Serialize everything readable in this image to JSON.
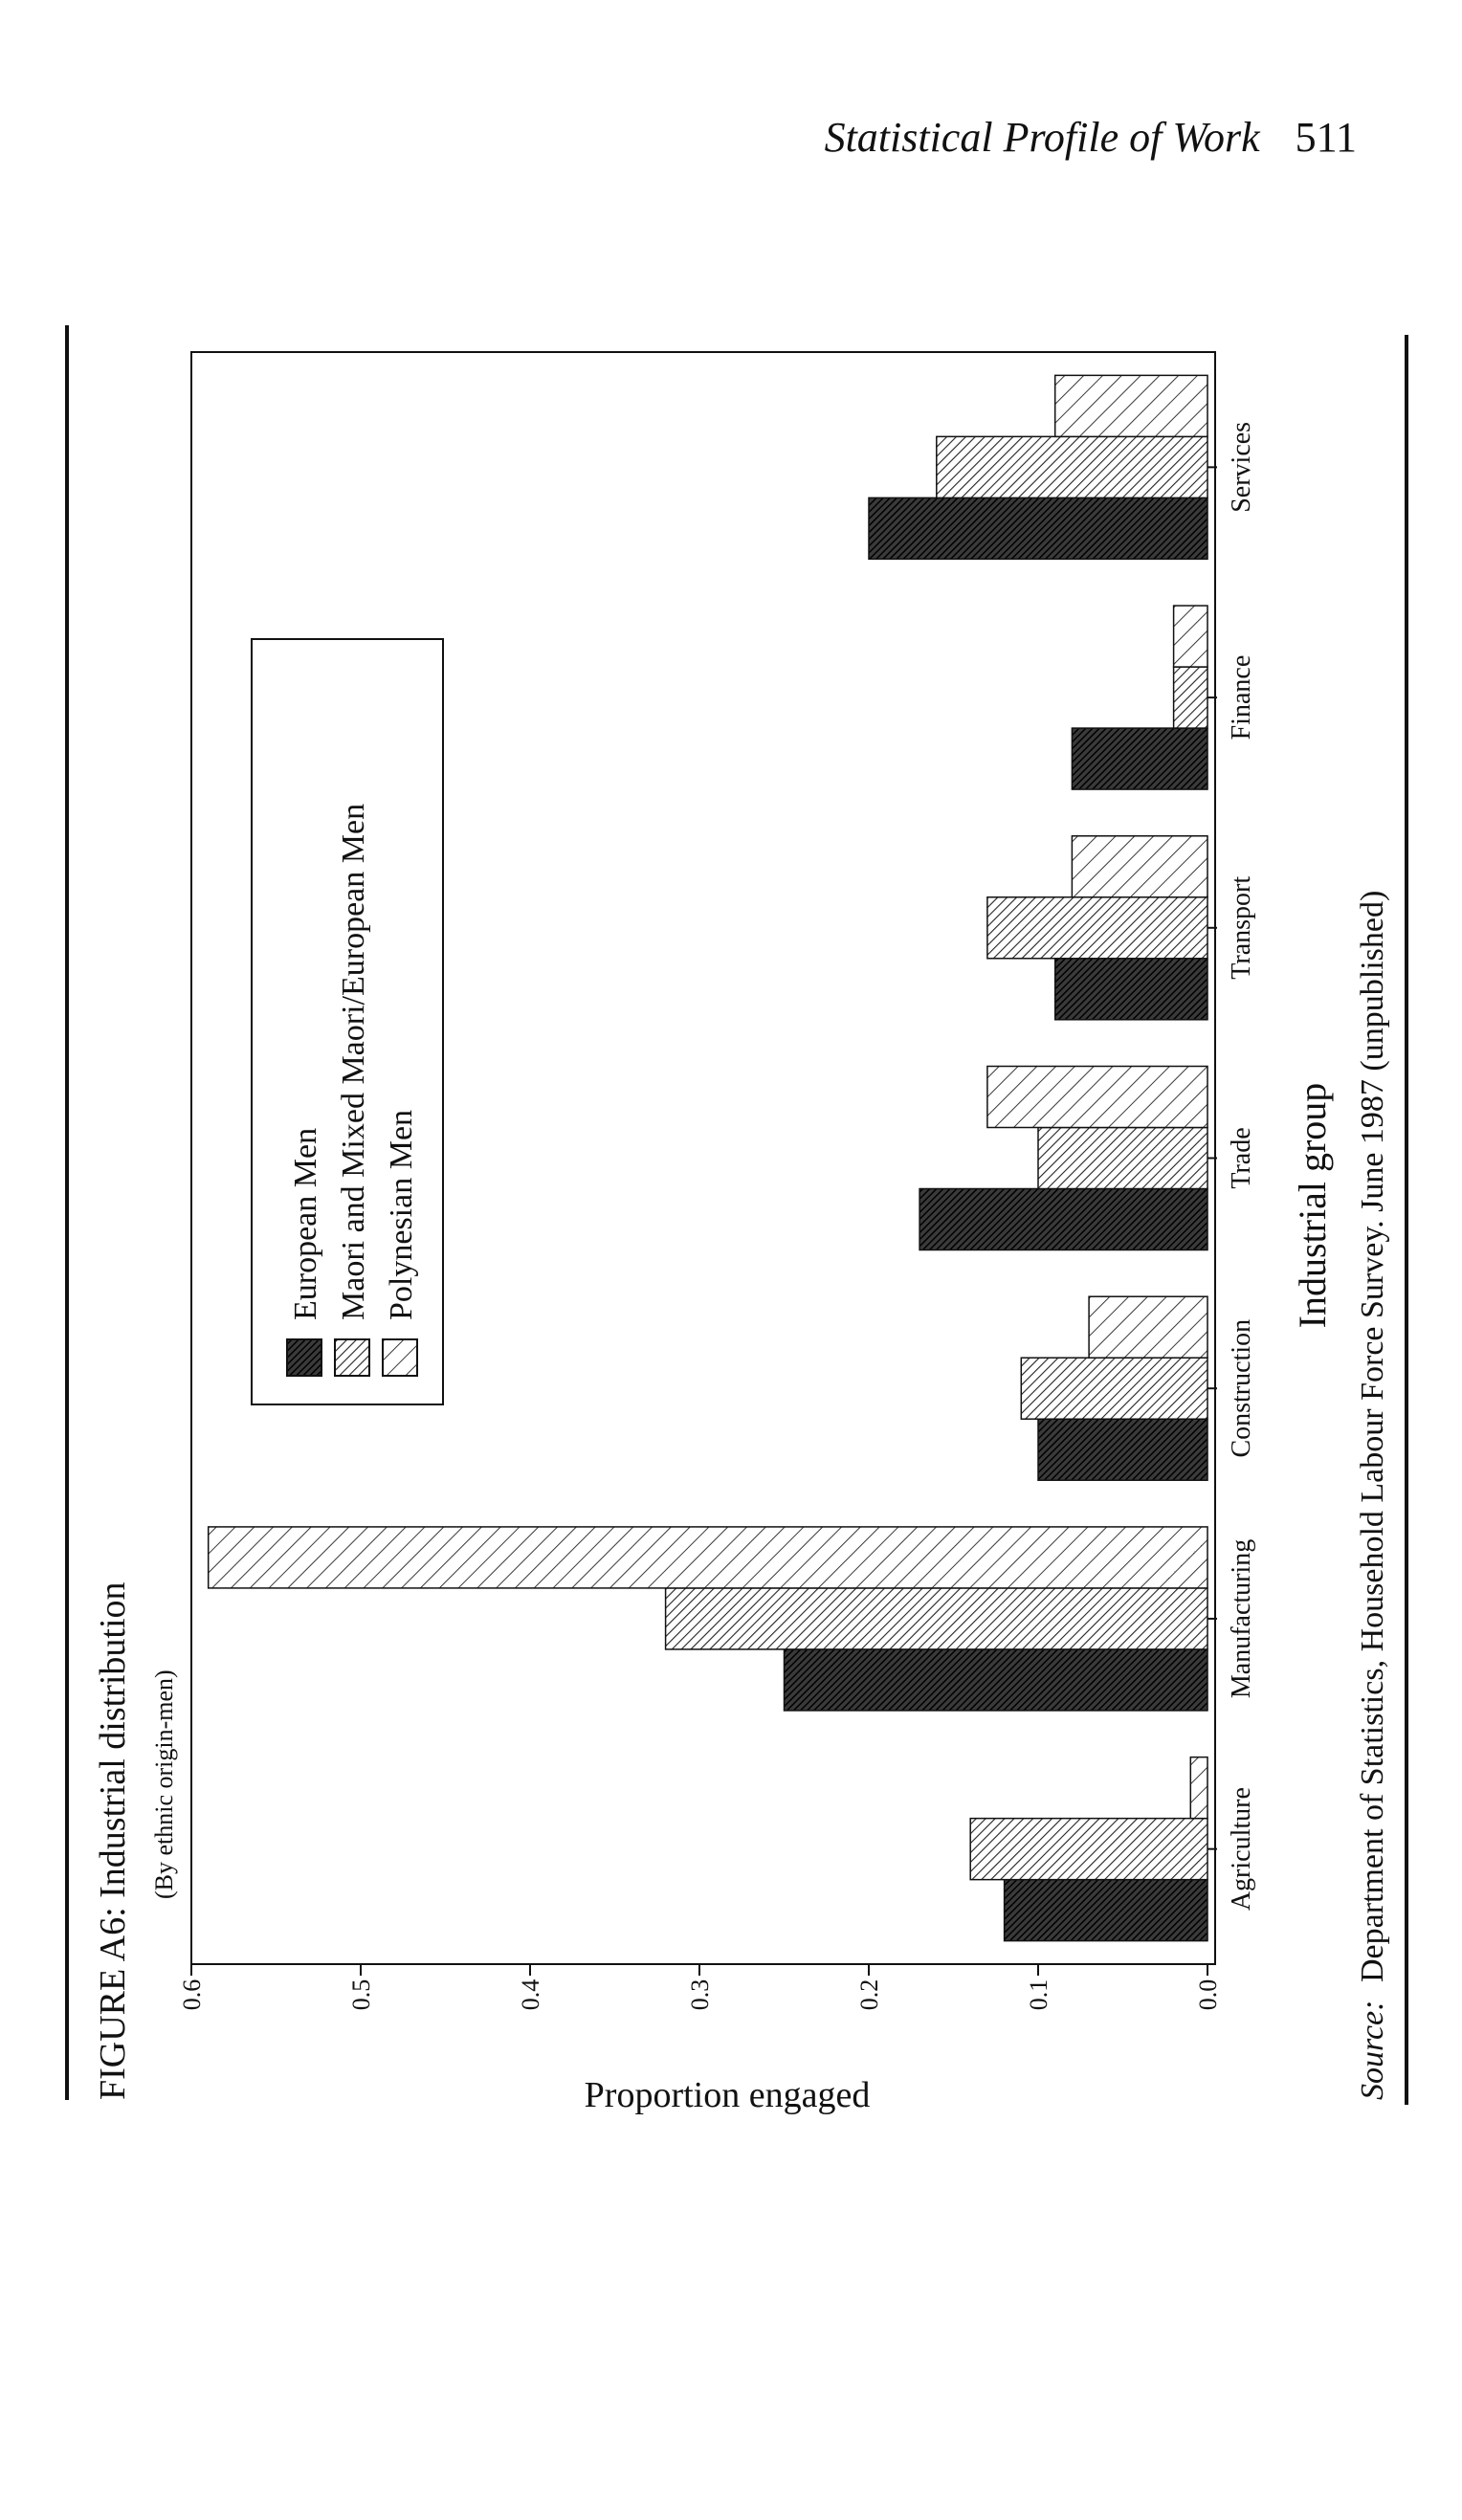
{
  "page_header": {
    "title": "Statistical Profile of Work",
    "page_number": "511"
  },
  "figure": {
    "caption": "FIGURE A6: Industrial distribution",
    "subcaption": "(By ethnic origin-men)",
    "source_label": "Source:",
    "source_text": "Department of Statistics, Household Labour Force Survey. June 1987 (unpublished)"
  },
  "chart_data": {
    "type": "bar",
    "orientation": "rotated page (printed sideways)",
    "title": "FIGURE A6: Industrial distribution",
    "subtitle": "(By ethnic origin-men)",
    "xlabel": "Industrial group",
    "ylabel": "Proportion engaged",
    "categories": [
      "Agriculture",
      "Manufacturing",
      "Construction",
      "Trade",
      "Transport",
      "Finance",
      "Services"
    ],
    "ylim": [
      0.0,
      0.6
    ],
    "yticks": [
      "0.0",
      "0.1",
      "0.2",
      "0.3",
      "0.4",
      "0.5",
      "0.6"
    ],
    "series": [
      {
        "name": "European Men",
        "values": [
          0.12,
          0.25,
          0.1,
          0.17,
          0.09,
          0.08,
          0.2
        ],
        "pattern": "dense-dark"
      },
      {
        "name": "Maori and Mixed Maori/European Men",
        "values": [
          0.14,
          0.32,
          0.11,
          0.1,
          0.13,
          0.02,
          0.16
        ],
        "pattern": "fine-hatch"
      },
      {
        "name": "Polynesian Men",
        "values": [
          0.01,
          0.59,
          0.07,
          0.13,
          0.08,
          0.02,
          0.09
        ],
        "pattern": "wide-hatch"
      }
    ],
    "legend_position": "inside, upper area",
    "grid": false
  }
}
